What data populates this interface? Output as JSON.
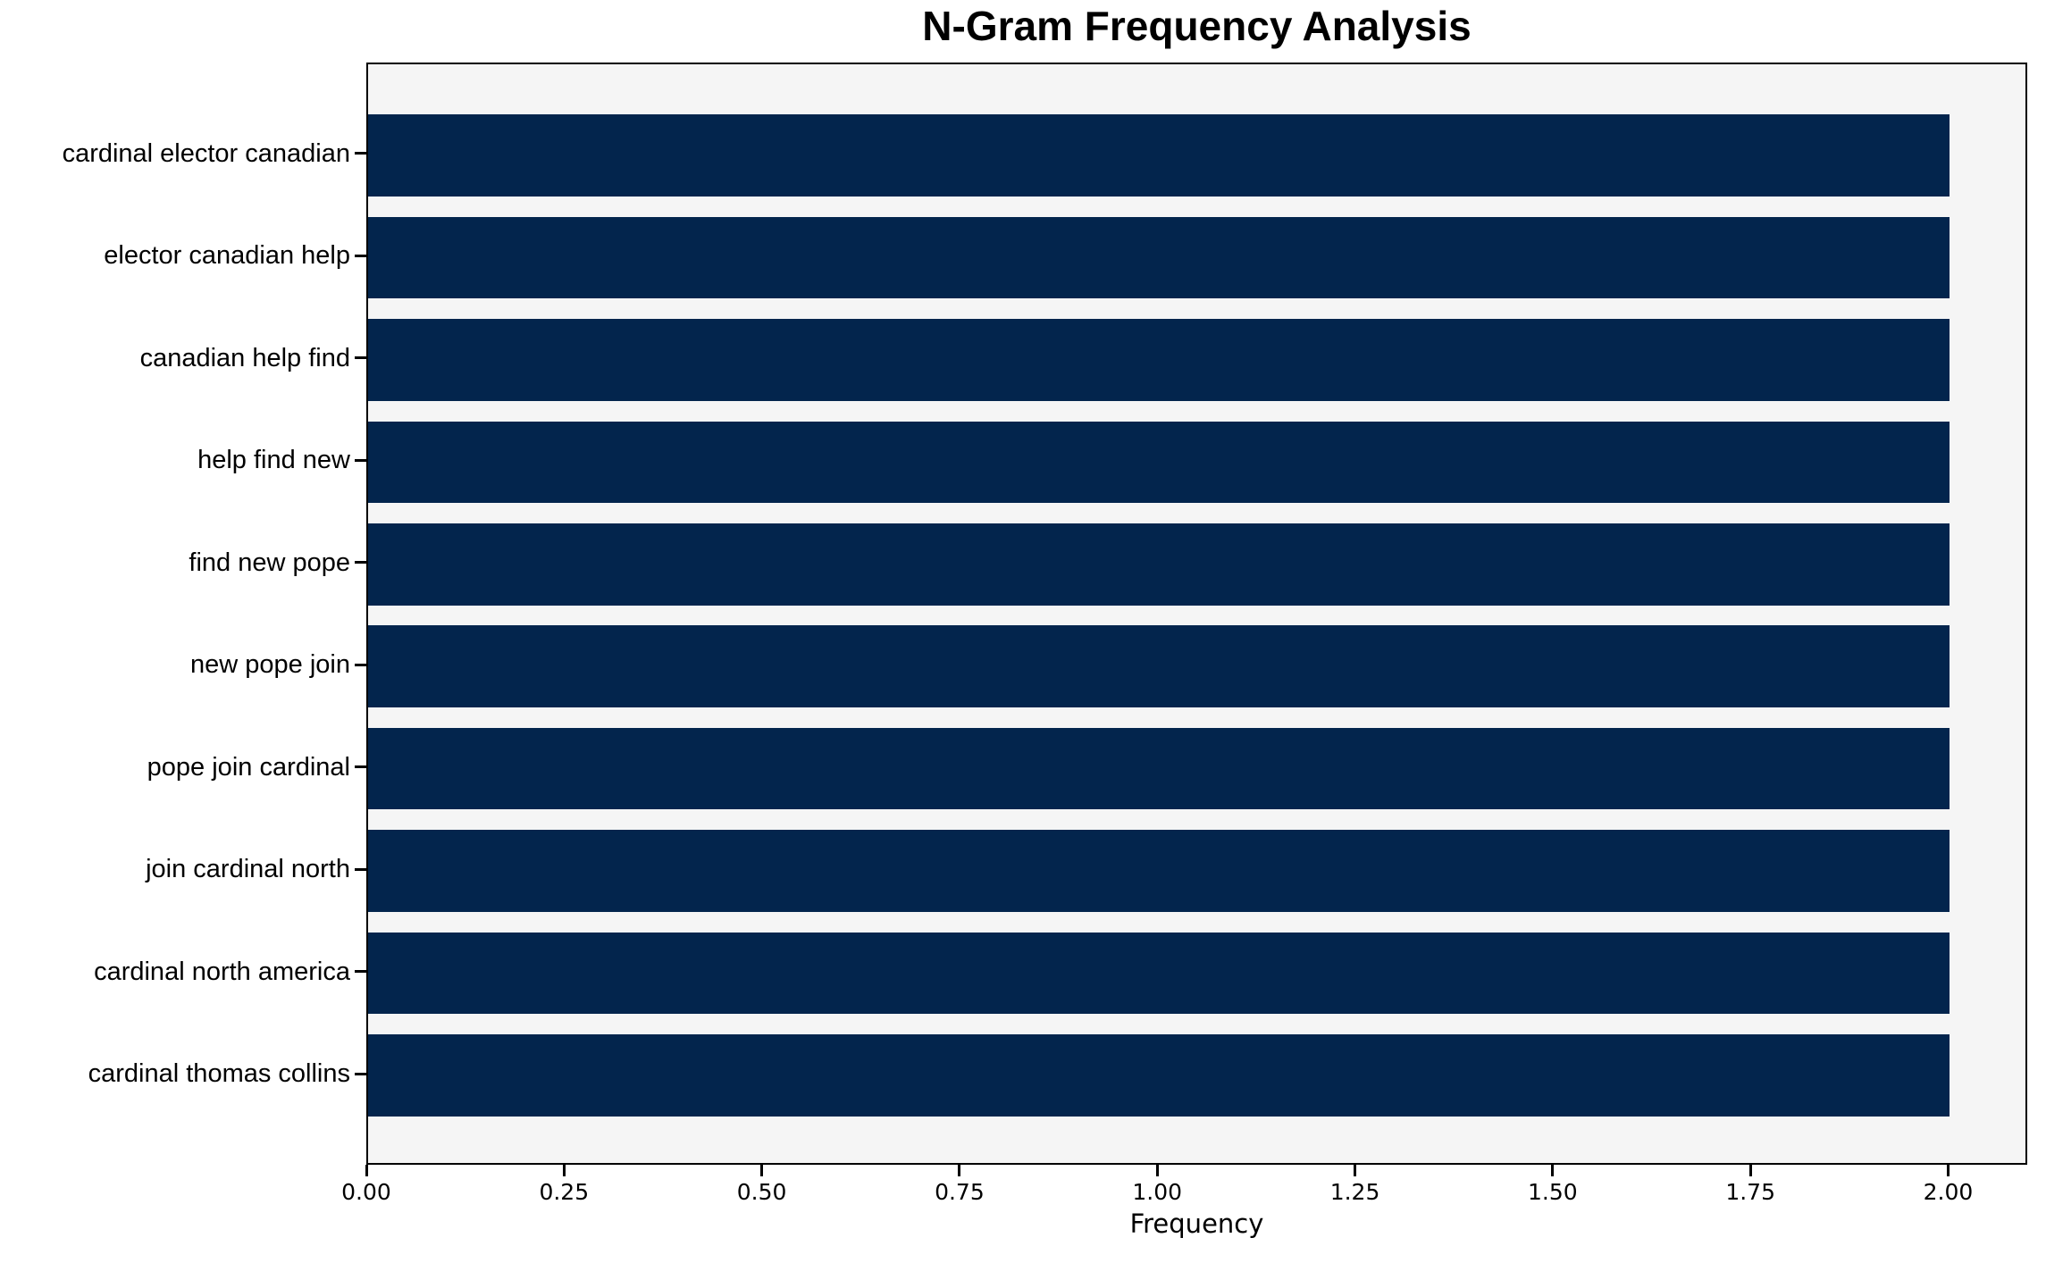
{
  "page": {
    "background": "#ffffff"
  },
  "chart_data": {
    "type": "bar",
    "orientation": "horizontal",
    "title": "N-Gram Frequency Analysis",
    "xlabel": "Frequency",
    "ylabel": "",
    "categories": [
      "cardinal elector canadian",
      "elector canadian help",
      "canadian help find",
      "help find new",
      "find new pope",
      "new pope join",
      "pope join cardinal",
      "join cardinal north",
      "cardinal north america",
      "cardinal thomas collins"
    ],
    "values": [
      2,
      2,
      2,
      2,
      2,
      2,
      2,
      2,
      2,
      2
    ],
    "xlim": [
      0,
      2.1
    ],
    "xticks": {
      "values": [
        0,
        0.25,
        0.5,
        0.75,
        1.0,
        1.25,
        1.5,
        1.75,
        2.0
      ],
      "labels": [
        "0.00",
        "0.25",
        "0.50",
        "0.75",
        "1.00",
        "1.25",
        "1.50",
        "1.75",
        "2.00"
      ]
    },
    "bar_color": "#03254d",
    "plot_background": "#f5f5f5",
    "frame_color": "#000000",
    "grid": false,
    "legend": null
  }
}
